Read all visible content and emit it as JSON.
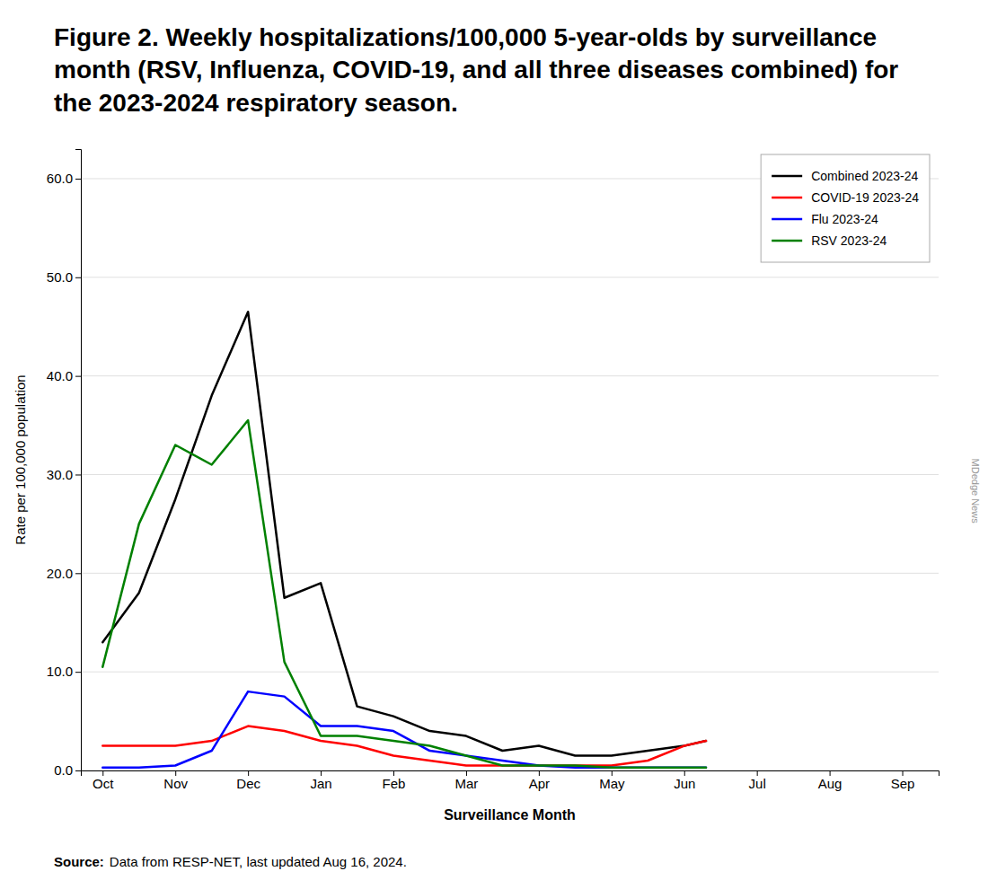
{
  "chart_data": {
    "type": "line",
    "title": "Figure 2. Weekly hospitalizations/100,000 5-year-olds by surveillance month (RSV, Influenza, COVID-19, and all three diseases combined) for the 2023-2024 respiratory season.",
    "xlabel": "Surveillance Month",
    "ylabel": "Rate per 100,000 population",
    "annotations": [
      "Source:",
      "Data from RESP-NET, last updated Aug 16, 2024.",
      "MDedge News"
    ],
    "x": [
      0.0,
      0.5,
      1.0,
      1.5,
      2.0,
      2.5,
      3.0,
      3.5,
      4.0,
      4.5,
      5.0,
      5.5,
      6.0,
      6.5,
      7.0,
      7.5,
      8.0,
      8.3
    ],
    "series": [
      {
        "name": "Combined 2023-24",
        "color": "#000000",
        "values": [
          13.0,
          18.0,
          27.5,
          38.0,
          46.5,
          17.5,
          19.0,
          6.5,
          5.5,
          4.0,
          3.5,
          2.0,
          2.5,
          1.5,
          1.5,
          2.0,
          2.5,
          3.0
        ]
      },
      {
        "name": "COVID-19 2023-24",
        "color": "#ff0000",
        "values": [
          2.5,
          2.5,
          2.5,
          3.0,
          4.5,
          4.0,
          3.0,
          2.5,
          1.5,
          1.0,
          0.5,
          0.5,
          0.5,
          0.5,
          0.5,
          1.0,
          2.5,
          3.0
        ]
      },
      {
        "name": "Flu 2023-24",
        "color": "#0000ff",
        "values": [
          0.3,
          0.3,
          0.5,
          2.0,
          8.0,
          7.5,
          4.5,
          4.5,
          4.0,
          2.0,
          1.5,
          1.0,
          0.5,
          0.3,
          0.3,
          0.3,
          0.3,
          0.3
        ]
      },
      {
        "name": "RSV 2023-24",
        "color": "#008000",
        "values": [
          10.5,
          25.0,
          33.0,
          31.0,
          35.5,
          11.0,
          3.5,
          3.5,
          3.0,
          2.5,
          1.5,
          0.5,
          0.5,
          0.5,
          0.3,
          0.3,
          0.3,
          0.3
        ]
      }
    ],
    "xlim": [
      -0.3,
      11.5
    ],
    "xticks": [
      {
        "value": 0,
        "label": "Oct"
      },
      {
        "value": 1,
        "label": "Nov"
      },
      {
        "value": 2,
        "label": "Dec"
      },
      {
        "value": 3,
        "label": "Jan"
      },
      {
        "value": 4,
        "label": "Feb"
      },
      {
        "value": 5,
        "label": "Mar"
      },
      {
        "value": 6,
        "label": "Apr"
      },
      {
        "value": 7,
        "label": "May"
      },
      {
        "value": 8,
        "label": "Jun"
      },
      {
        "value": 9,
        "label": "Jul"
      },
      {
        "value": 10,
        "label": "Aug"
      },
      {
        "value": 11,
        "label": "Sep"
      }
    ],
    "ylim": [
      0,
      63
    ],
    "yticks": [
      {
        "value": 0.0,
        "label": "0.0"
      },
      {
        "value": 10.0,
        "label": "10.0"
      },
      {
        "value": 20.0,
        "label": "20.0"
      },
      {
        "value": 30.0,
        "label": "30.0"
      },
      {
        "value": 40.0,
        "label": "40.0"
      },
      {
        "value": 50.0,
        "label": "50.0"
      },
      {
        "value": 60.0,
        "label": "60.0"
      }
    ],
    "grid": true,
    "legend": "upper right"
  }
}
